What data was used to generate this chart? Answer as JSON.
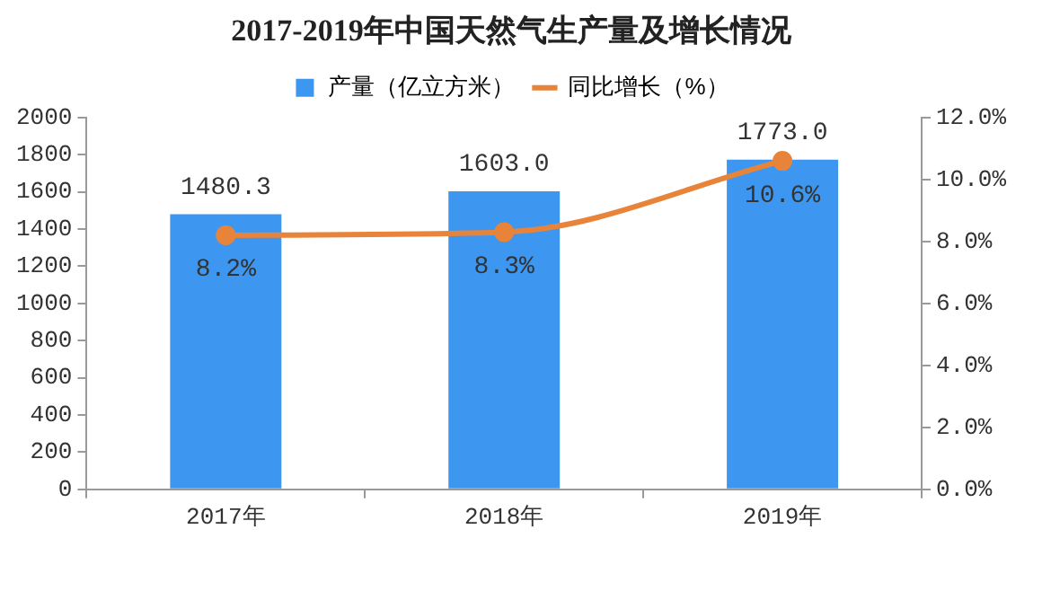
{
  "chart_data": {
    "type": "bar",
    "title": "2017-2019年中国天然气生产量及增长情况",
    "categories": [
      "2017年",
      "2018年",
      "2019年"
    ],
    "series": [
      {
        "name": "产量（亿立方米）",
        "color": "#3d97f0",
        "values": [
          1480.3,
          1603.0,
          1773.0
        ],
        "value_labels": [
          "1480.3",
          "1603.0",
          "1773.0"
        ]
      },
      {
        "name": "同比增长（%）",
        "type": "line",
        "axis": "y2",
        "color": "#e8843a",
        "values": [
          8.2,
          8.3,
          10.6
        ],
        "value_labels": [
          "8.2%",
          "8.3%",
          "10.6%"
        ]
      }
    ],
    "ylim": [
      0,
      2000
    ],
    "yticks": [
      0,
      200,
      400,
      600,
      800,
      1000,
      1200,
      1400,
      1600,
      1800,
      2000
    ],
    "y2lim": [
      0,
      12
    ],
    "y2ticks": [
      {
        "value": 0,
        "label": "0.0%"
      },
      {
        "value": 2,
        "label": "2.0%"
      },
      {
        "value": 4,
        "label": "4.0%"
      },
      {
        "value": 6,
        "label": "6.0%"
      },
      {
        "value": 8,
        "label": "8.0%"
      },
      {
        "value": 10,
        "label": "10.0%"
      },
      {
        "value": 12,
        "label": "12.0%"
      }
    ],
    "grid": false,
    "legend": "top",
    "marker": "circle"
  }
}
